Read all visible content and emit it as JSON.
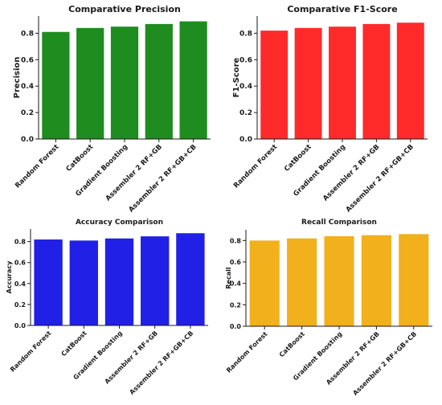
{
  "chart_data": [
    {
      "type": "bar",
      "title": "Comparative Precision",
      "xlabel": "",
      "ylabel": "Precision",
      "categories": [
        "Random Forest",
        "CatBoost",
        "Gradient Boosting",
        "Assembler 2 RF+GB",
        "Assembler 2 RF+GB+CB"
      ],
      "values": [
        0.81,
        0.84,
        0.85,
        0.87,
        0.89
      ],
      "ylim": [
        0,
        0.93
      ],
      "yticks": [
        "0.0",
        "0.2",
        "0.4",
        "0.6",
        "0.8"
      ],
      "color": "#1e8c1e",
      "grid": false
    },
    {
      "type": "bar",
      "title": "Comparative F1-Score",
      "xlabel": "",
      "ylabel": "F1-Score",
      "categories": [
        "Random Forest",
        "CatBoost",
        "Gradient Boosting",
        "Assembler 2 RF+GB",
        "Assembler 2 RF+GB+CB"
      ],
      "values": [
        0.82,
        0.84,
        0.85,
        0.87,
        0.88
      ],
      "ylim": [
        0,
        0.93
      ],
      "yticks": [
        "0.0",
        "0.2",
        "0.4",
        "0.6",
        "0.8"
      ],
      "color": "#ff2a2a",
      "grid": false
    },
    {
      "type": "bar",
      "title": "Accuracy Comparison",
      "xlabel": "",
      "ylabel": "Accuracy",
      "categories": [
        "Random Forest",
        "CatBoost",
        "Gradient Boosting",
        "Assembler 2 RF+GB",
        "Assembler 2 RF+GB+CB"
      ],
      "values": [
        0.82,
        0.81,
        0.83,
        0.85,
        0.88
      ],
      "ylim": [
        0,
        0.92
      ],
      "yticks": [
        "0.0",
        "0.2",
        "0.4",
        "0.6",
        "0.8"
      ],
      "color": "#2020e6",
      "grid": false
    },
    {
      "type": "bar",
      "title": "Recall Comparison",
      "xlabel": "",
      "ylabel": "Recall",
      "categories": [
        "Random Forest",
        "CatBoost",
        "Gradient Boosting",
        "Assembler 2 RF+GB",
        "Assembler 2 RF+GB+CB"
      ],
      "values": [
        0.8,
        0.82,
        0.84,
        0.85,
        0.86
      ],
      "ylim": [
        0,
        0.9
      ],
      "yticks": [
        "0.0",
        "0.2",
        "0.4",
        "0.6",
        "0.8"
      ],
      "color": "#f2b01d",
      "grid": false
    }
  ]
}
